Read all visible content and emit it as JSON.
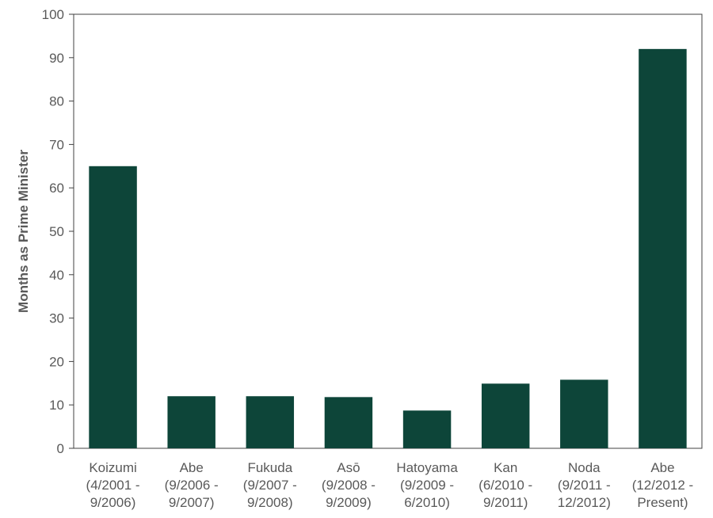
{
  "chart_data": {
    "type": "bar",
    "title": "",
    "xlabel": "",
    "ylabel": "Months as Prime Minister",
    "ylim": [
      0,
      100
    ],
    "yticks": [
      0,
      10,
      20,
      30,
      40,
      50,
      60,
      70,
      80,
      90,
      100
    ],
    "grid": false,
    "bar_color": "#0d4539",
    "categories": [
      [
        "Koizumi",
        "(4/2001 -",
        "9/2006)"
      ],
      [
        "Abe",
        "(9/2006 -",
        "9/2007)"
      ],
      [
        "Fukuda",
        "(9/2007 -",
        "9/2008)"
      ],
      [
        "Asō",
        "(9/2008 -",
        "9/2009)"
      ],
      [
        "Hatoyama",
        "(9/2009 -",
        "6/2010)"
      ],
      [
        "Kan",
        "(6/2010 -",
        "9/2011)"
      ],
      [
        "Noda",
        "(9/2011 -",
        "12/2012)"
      ],
      [
        "Abe",
        "(12/2012 -",
        "Present)"
      ]
    ],
    "values": [
      65,
      12,
      12,
      11.8,
      8.7,
      14.9,
      15.8,
      92
    ]
  }
}
